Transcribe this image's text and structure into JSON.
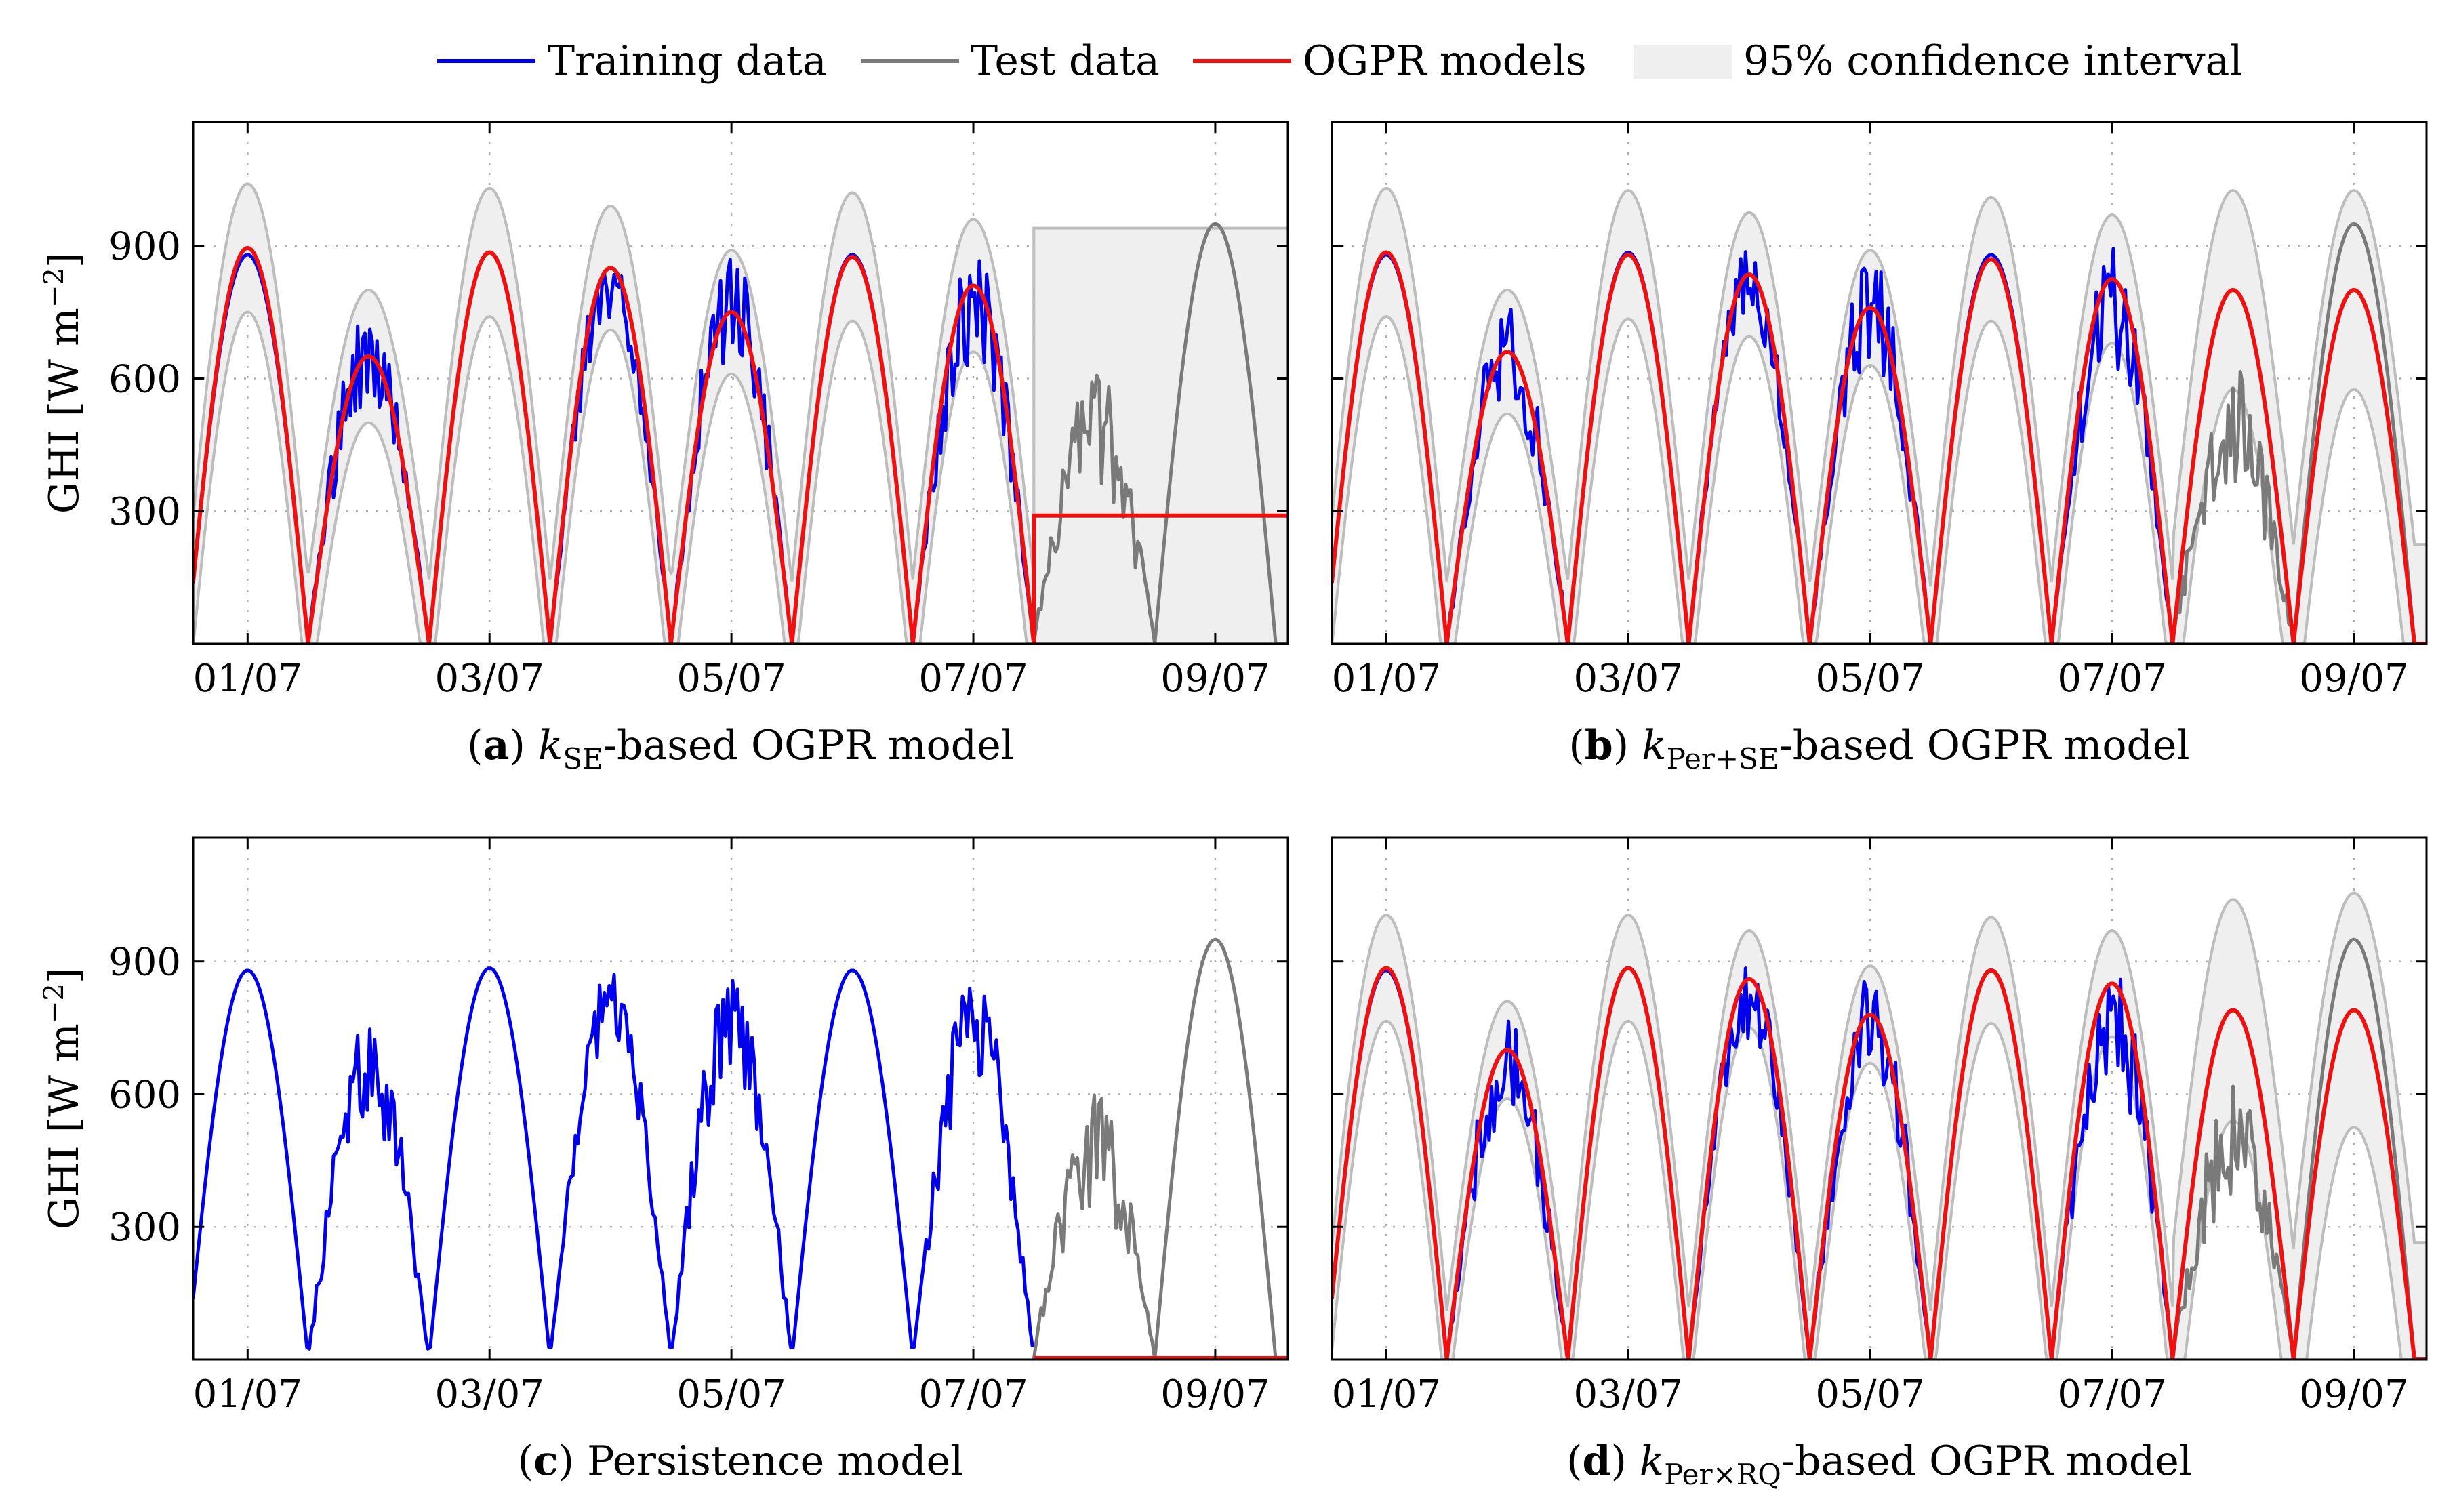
{
  "legend": [
    {
      "key": "training",
      "label": "Training data",
      "color": "#0000ee"
    },
    {
      "key": "test",
      "label": "Test data",
      "color": "#808080"
    },
    {
      "key": "model",
      "label": "OGPR models",
      "color": "#ee1111"
    },
    {
      "key": "ci",
      "label": "95% confidence interval",
      "color": "#f0f0f0"
    }
  ],
  "colors": {
    "training": "#0000ee",
    "test": "#7a7a7a",
    "model": "#ee1111",
    "ci_fill": "#efefef",
    "ci_edge": "#bdbdbd",
    "grid": "#b0b0b0"
  },
  "chart_data": [
    {
      "id": "a",
      "type": "line",
      "caption": {
        "label": "(a)",
        "text_pre": "k",
        "sub": "SE",
        "text_post": "-based OGPR model"
      },
      "ylabel": "GHI [W m−2]",
      "yticks": [
        300,
        600,
        900
      ],
      "ytick_labels": [
        "300",
        "600",
        "900"
      ],
      "ylim": [
        0,
        1180
      ],
      "xlim_days": [
        -0.45,
        8.6
      ],
      "xticks_days": [
        0,
        2,
        4,
        6,
        8
      ],
      "xtick_labels": [
        "01/07",
        "03/07",
        "05/07",
        "07/07",
        "09/07"
      ],
      "train_end_day": 6.5,
      "forecast": "flat",
      "forecast_level": 290,
      "ci_flat_upper": 940,
      "ci_flat_lower": 0,
      "model_peaks": [
        895,
        650,
        885,
        850,
        750,
        875,
        810
      ],
      "ci_halfwidth": [
        145,
        150,
        145,
        140,
        140,
        145,
        150
      ],
      "night_upper_min": [
        0,
        160,
        0,
        160,
        0,
        0,
        0
      ]
    },
    {
      "id": "b",
      "type": "line",
      "caption": {
        "label": "(b)",
        "text_pre": "k",
        "sub": "Per+SE",
        "text_post": "-based OGPR model"
      },
      "ylabel": "",
      "yticks": [
        300,
        600,
        900
      ],
      "ytick_labels": [
        "",
        "",
        ""
      ],
      "ylim": [
        0,
        1180
      ],
      "xlim_days": [
        -0.45,
        8.6
      ],
      "xticks_days": [
        0,
        2,
        4,
        6,
        8
      ],
      "xtick_labels": [
        "01/07",
        "03/07",
        "05/07",
        "07/07",
        "09/07"
      ],
      "train_end_day": 6.5,
      "forecast": "periodic",
      "model_peaks": [
        885,
        660,
        880,
        835,
        760,
        870,
        825,
        800,
        800
      ],
      "ci_halfwidth": [
        145,
        140,
        145,
        140,
        130,
        140,
        145,
        225,
        225
      ],
      "night_upper_min": [
        0,
        130,
        0,
        140,
        0,
        0,
        0,
        0,
        0
      ]
    },
    {
      "id": "c",
      "type": "line",
      "caption": {
        "label": "(c)",
        "text_pre": "Persistence model",
        "sub": "",
        "text_post": ""
      },
      "ylabel": "GHI [W m−2]",
      "yticks": [
        300,
        600,
        900
      ],
      "ytick_labels": [
        "300",
        "600",
        "900"
      ],
      "ylim": [
        0,
        1180
      ],
      "xlim_days": [
        -0.45,
        8.6
      ],
      "xticks_days": [
        0,
        2,
        4,
        6,
        8
      ],
      "xtick_labels": [
        "01/07",
        "03/07",
        "05/07",
        "07/07",
        "09/07"
      ],
      "train_end_day": 6.5,
      "forecast": "zero",
      "model_peaks": [],
      "ci_halfwidth": [],
      "night_upper_min": []
    },
    {
      "id": "d",
      "type": "line",
      "caption": {
        "label": "(d)",
        "text_pre": "k",
        "sub": "Per×RQ",
        "text_post": "-based OGPR model"
      },
      "ylabel": "",
      "yticks": [
        300,
        600,
        900
      ],
      "ytick_labels": [
        "",
        "",
        ""
      ],
      "ylim": [
        0,
        1180
      ],
      "xlim_days": [
        -0.45,
        8.6
      ],
      "xticks_days": [
        0,
        2,
        4,
        6,
        8
      ],
      "xtick_labels": [
        "01/07",
        "03/07",
        "05/07",
        "07/07",
        "09/07"
      ],
      "train_end_day": 6.5,
      "forecast": "periodic",
      "model_peaks": [
        885,
        700,
        885,
        860,
        780,
        880,
        850,
        790,
        790
      ],
      "ci_halfwidth": [
        120,
        110,
        120,
        110,
        110,
        120,
        120,
        250,
        265
      ],
      "night_upper_min": [
        0,
        100,
        0,
        100,
        0,
        0,
        0,
        0,
        0
      ]
    }
  ],
  "series_common": {
    "peak_hour_offset_days": 0.0,
    "daylight_halfwidth_days": 0.5,
    "train_day_peaks": [
      880,
      765,
      885,
      895,
      880,
      880,
      895
    ],
    "test_day_peaks": [
      630,
      950
    ],
    "test_dip_values": [
      480,
      520,
      640,
      270,
      400,
      785
    ]
  }
}
